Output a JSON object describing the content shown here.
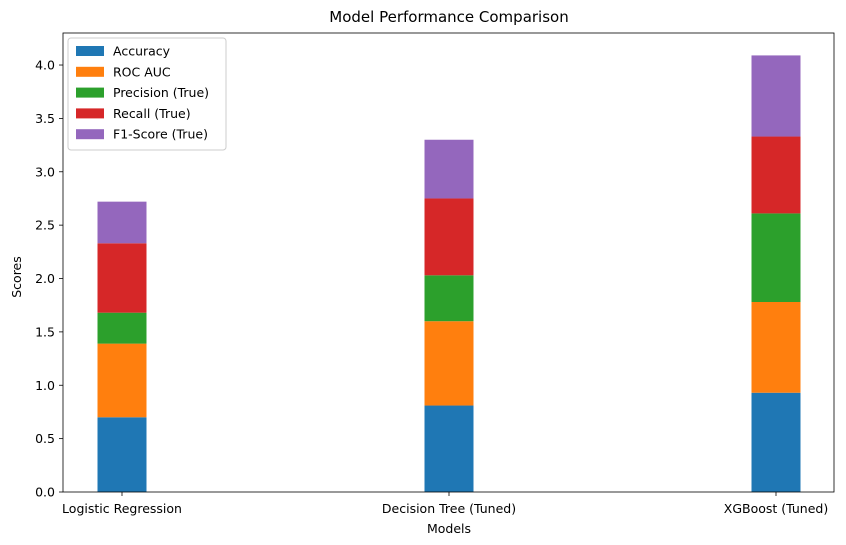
{
  "chart_data": {
    "type": "bar",
    "stacked": true,
    "title": "Model Performance Comparison",
    "xlabel": "Models",
    "ylabel": "Scores",
    "ylim": [
      0,
      4.3
    ],
    "yticks": [
      0.0,
      0.5,
      1.0,
      1.5,
      2.0,
      2.5,
      3.0,
      3.5,
      4.0
    ],
    "ytick_labels": [
      "0.0",
      "0.5",
      "1.0",
      "1.5",
      "2.0",
      "2.5",
      "3.0",
      "3.5",
      "4.0"
    ],
    "grid": false,
    "legend": "top-left",
    "categories": [
      "Logistic Regression",
      "Decision Tree (Tuned)",
      "XGBoost (Tuned)"
    ],
    "series": [
      {
        "name": "Accuracy",
        "color": "#1f77b4",
        "values": [
          0.7,
          0.81,
          0.93
        ]
      },
      {
        "name": "ROC AUC",
        "color": "#ff7f0e",
        "values": [
          0.69,
          0.79,
          0.85
        ]
      },
      {
        "name": "Precision (True)",
        "color": "#2ca02c",
        "values": [
          0.29,
          0.43,
          0.83
        ]
      },
      {
        "name": "Recall (True)",
        "color": "#d62728",
        "values": [
          0.65,
          0.72,
          0.72
        ]
      },
      {
        "name": "F1-Score (True)",
        "color": "#9467bd",
        "values": [
          0.39,
          0.55,
          0.76
        ]
      }
    ]
  }
}
